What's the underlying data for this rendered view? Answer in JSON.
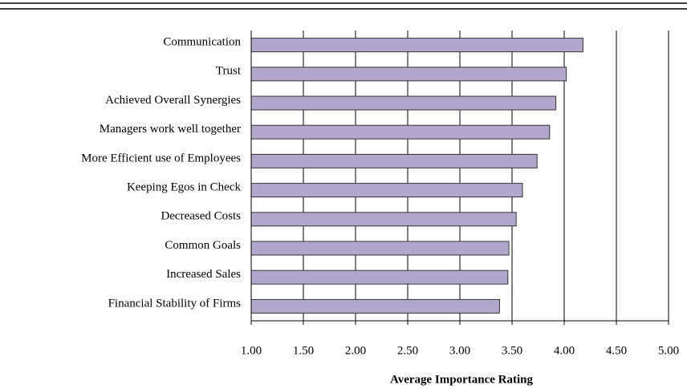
{
  "chart_data": {
    "type": "barh",
    "x_label": "Average Importance Rating",
    "categories": [
      "Communication",
      "Trust",
      "Achieved Overall Synergies",
      "Managers work well together",
      "More Efficient use of Employees",
      "Keeping Egos in Check",
      "Decreased Costs",
      "Common Goals",
      "Increased Sales",
      "Financial Stability of Firms"
    ],
    "values": [
      4.18,
      4.02,
      3.92,
      3.86,
      3.74,
      3.6,
      3.54,
      3.47,
      3.46,
      3.38
    ],
    "color": "#b3a6cc",
    "xlim": [
      1,
      5
    ],
    "xticks": [
      {
        "value": 1,
        "label": "1.00"
      },
      {
        "value": 1.5,
        "label": "1.50"
      },
      {
        "value": 2,
        "label": "2.00"
      },
      {
        "value": 2.5,
        "label": "2.50"
      },
      {
        "value": 3,
        "label": "3.00"
      },
      {
        "value": 3.5,
        "label": "3.50"
      },
      {
        "value": 4,
        "label": "4.00"
      },
      {
        "value": 4.5,
        "label": "4.50"
      },
      {
        "value": 5,
        "label": "5.00"
      }
    ],
    "grid": true
  }
}
